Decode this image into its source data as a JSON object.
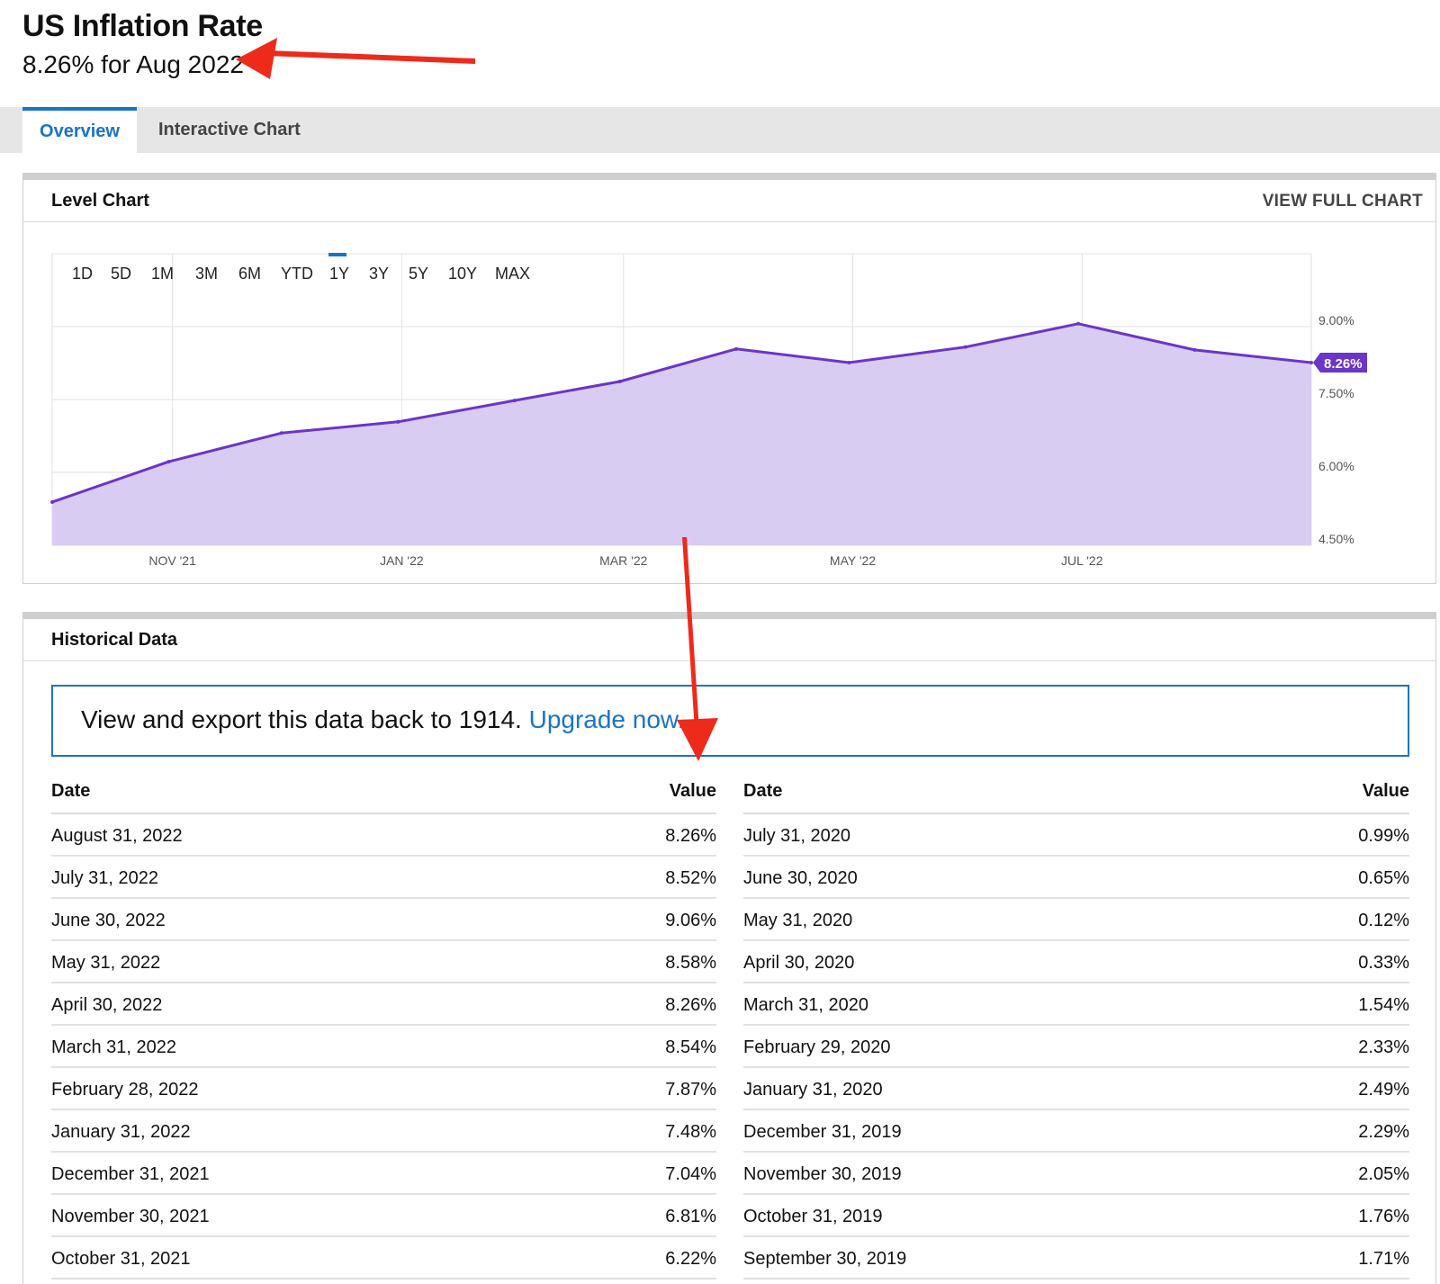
{
  "header": {
    "title": "US Inflation Rate",
    "subtitle": "8.26% for Aug 2022"
  },
  "tabs": [
    {
      "label": "Overview",
      "active": true
    },
    {
      "label": "Interactive Chart",
      "active": false
    }
  ],
  "level_chart": {
    "title": "Level Chart",
    "view_full_label": "VIEW FULL CHART",
    "ranges": [
      "1D",
      "5D",
      "1M",
      "3M",
      "6M",
      "YTD",
      "1Y",
      "3Y",
      "5Y",
      "10Y",
      "MAX"
    ],
    "active_range": "1Y",
    "current_label": "8.26%"
  },
  "chart_data": {
    "type": "area",
    "x": [
      "2021-09-30",
      "2021-10-31",
      "2021-11-30",
      "2021-12-31",
      "2022-01-31",
      "2022-02-28",
      "2022-03-31",
      "2022-04-30",
      "2022-05-31",
      "2022-06-30",
      "2022-07-31",
      "2022-08-31"
    ],
    "series": [
      {
        "values": [
          5.39,
          6.22,
          6.81,
          7.04,
          7.48,
          7.87,
          8.54,
          8.26,
          8.58,
          9.06,
          8.52,
          8.26
        ]
      }
    ],
    "x_tick_labels": [
      "NOV '21",
      "JAN '22",
      "MAR '22",
      "MAY '22",
      "JUL '22"
    ],
    "y_tick_labels": [
      "4.50%",
      "6.00%",
      "7.50%",
      "9.00%"
    ],
    "ylim": [
      4.5,
      10.5
    ],
    "y_axis_side": "right",
    "grid": true,
    "line_color": "#6a35c9",
    "fill_color": "#d9ccf2"
  },
  "historical": {
    "title": "Historical Data",
    "banner_text": "View and export this data back to 1914.",
    "banner_link": "Upgrade now.",
    "date_header": "Date",
    "value_header": "Value",
    "left_rows": [
      {
        "date": "August 31, 2022",
        "value": "8.26%"
      },
      {
        "date": "July 31, 2022",
        "value": "8.52%"
      },
      {
        "date": "June 30, 2022",
        "value": "9.06%"
      },
      {
        "date": "May 31, 2022",
        "value": "8.58%"
      },
      {
        "date": "April 30, 2022",
        "value": "8.26%"
      },
      {
        "date": "March 31, 2022",
        "value": "8.54%"
      },
      {
        "date": "February 28, 2022",
        "value": "7.87%"
      },
      {
        "date": "January 31, 2022",
        "value": "7.48%"
      },
      {
        "date": "December 31, 2021",
        "value": "7.04%"
      },
      {
        "date": "November 30, 2021",
        "value": "6.81%"
      },
      {
        "date": "October 31, 2021",
        "value": "6.22%"
      }
    ],
    "right_rows": [
      {
        "date": "July 31, 2020",
        "value": "0.99%"
      },
      {
        "date": "June 30, 2020",
        "value": "0.65%"
      },
      {
        "date": "May 31, 2020",
        "value": "0.12%"
      },
      {
        "date": "April 30, 2020",
        "value": "0.33%"
      },
      {
        "date": "March 31, 2020",
        "value": "1.54%"
      },
      {
        "date": "February 29, 2020",
        "value": "2.33%"
      },
      {
        "date": "January 31, 2020",
        "value": "2.49%"
      },
      {
        "date": "December 31, 2019",
        "value": "2.29%"
      },
      {
        "date": "November 30, 2019",
        "value": "2.05%"
      },
      {
        "date": "October 31, 2019",
        "value": "1.76%"
      },
      {
        "date": "September 30, 2019",
        "value": "1.71%"
      }
    ]
  },
  "colors": {
    "accent": "#1a73c8",
    "annotation_arrow": "#ee2a1b"
  }
}
